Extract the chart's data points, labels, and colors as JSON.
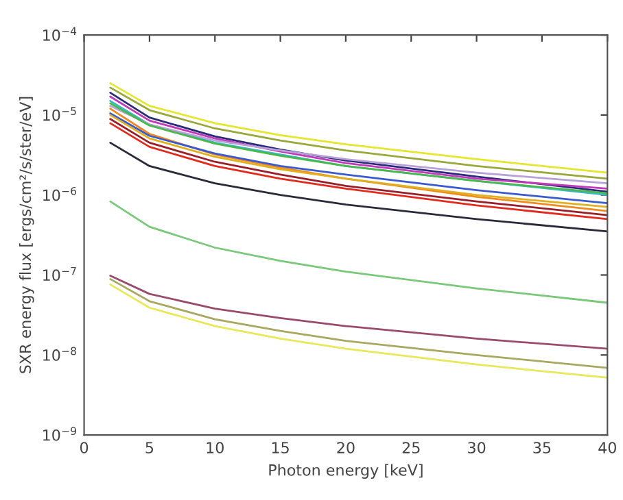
{
  "chart_data": {
    "type": "line",
    "xlabel": "Photon energy [keV]",
    "ylabel": "SXR energy flux [ergs/cm²/s/ster/eV]",
    "x": [
      2,
      5,
      10,
      15,
      20,
      30,
      40
    ],
    "xlim": [
      0,
      40
    ],
    "xticks": [
      0,
      5,
      10,
      15,
      20,
      25,
      30,
      35,
      40
    ],
    "log": "y",
    "ylim": [
      1e-09,
      0.0001
    ],
    "yticks": [
      {
        "value": 1e-09,
        "label": "10$^{−9}$"
      },
      {
        "value": 1e-08,
        "label": "10$^{−8}$"
      },
      {
        "value": 1e-07,
        "label": "10$^{−7}$"
      },
      {
        "value": 1e-06,
        "label": "10$^{−6}$"
      },
      {
        "value": 1e-05,
        "label": "10$^{−5}$"
      },
      {
        "value": 0.0001,
        "label": "10$^{−4}$"
      }
    ],
    "grid": false,
    "legend": false,
    "marker": "none",
    "line_style": "solid",
    "series": [
      {
        "color": "#e6e62e",
        "values": [
          2.5e-05,
          1.3e-05,
          7.9e-06,
          5.6e-06,
          4.3e-06,
          2.8e-06,
          1.9e-06
        ]
      },
      {
        "color": "#9aa83a",
        "values": [
          2.2e-05,
          1.15e-05,
          6.8e-06,
          4.8e-06,
          3.6e-06,
          2.3e-06,
          1.6e-06
        ]
      },
      {
        "color": "#2a2a7a",
        "values": [
          1.9e-05,
          9.3e-06,
          5.4e-06,
          3.7e-06,
          2.7e-06,
          1.7e-06,
          1.1e-06
        ]
      },
      {
        "color": "#c23ab8",
        "values": [
          1.7e-05,
          8.5e-06,
          5.1e-06,
          3.5e-06,
          2.5e-06,
          1.6e-06,
          1.2e-06
        ]
      },
      {
        "color": "#3ab8c8",
        "values": [
          1.5e-05,
          7.6e-06,
          4.5e-06,
          3.2e-06,
          2.3e-06,
          1.5e-06,
          1e-06
        ]
      },
      {
        "color": "#b8a0d8",
        "values": [
          1.3e-05,
          7.6e-06,
          4.8e-06,
          3.6e-06,
          2.8e-06,
          1.9e-06,
          1.4e-06
        ]
      },
      {
        "color": "#f08a1e",
        "values": [
          1.2e-05,
          5.8e-06,
          3.2e-06,
          2.2e-06,
          1.6e-06,
          9.5e-07,
          6.3e-07
        ]
      },
      {
        "color": "#3a5ad0",
        "values": [
          1.05e-05,
          5.5e-06,
          3.3e-06,
          2.3e-06,
          1.8e-06,
          1.15e-06,
          7.9e-07
        ]
      },
      {
        "color": "#e02a1e",
        "values": [
          7.9e-06,
          4e-06,
          2.3e-06,
          1.6e-06,
          1.2e-06,
          7.4e-07,
          5e-07
        ]
      },
      {
        "color": "#9a1e2a",
        "values": [
          8.9e-06,
          4.5e-06,
          2.6e-06,
          1.8e-06,
          1.3e-06,
          8.3e-07,
          5.6e-07
        ]
      },
      {
        "color": "#e0b020",
        "values": [
          1e-05,
          5.1e-06,
          3e-06,
          2.1e-06,
          1.6e-06,
          1e-06,
          7.1e-07
        ]
      },
      {
        "color": "#4ab84a",
        "values": [
          1.4e-05,
          7.4e-06,
          4.4e-06,
          3.1e-06,
          2.3e-06,
          1.5e-06,
          1.05e-06
        ]
      },
      {
        "color": "#2a2a3a",
        "values": [
          4.5e-06,
          2.3e-06,
          1.4e-06,
          1e-06,
          7.6e-07,
          5e-07,
          3.5e-07
        ]
      },
      {
        "color": "#7ac87a",
        "values": [
          8.3e-07,
          4e-07,
          2.2e-07,
          1.5e-07,
          1.1e-07,
          6.8e-08,
          4.5e-08
        ]
      },
      {
        "color": "#9a4a6a",
        "values": [
          9.8e-08,
          5.8e-08,
          3.8e-08,
          2.9e-08,
          2.3e-08,
          1.6e-08,
          1.2e-08
        ]
      },
      {
        "color": "#a8a860",
        "values": [
          8.9e-08,
          4.7e-08,
          2.8e-08,
          2e-08,
          1.5e-08,
          1e-08,
          6.9e-09
        ]
      },
      {
        "color": "#e8e85a",
        "values": [
          7.6e-08,
          3.9e-08,
          2.3e-08,
          1.6e-08,
          1.2e-08,
          7.6e-09,
          5.2e-09
        ]
      }
    ]
  }
}
